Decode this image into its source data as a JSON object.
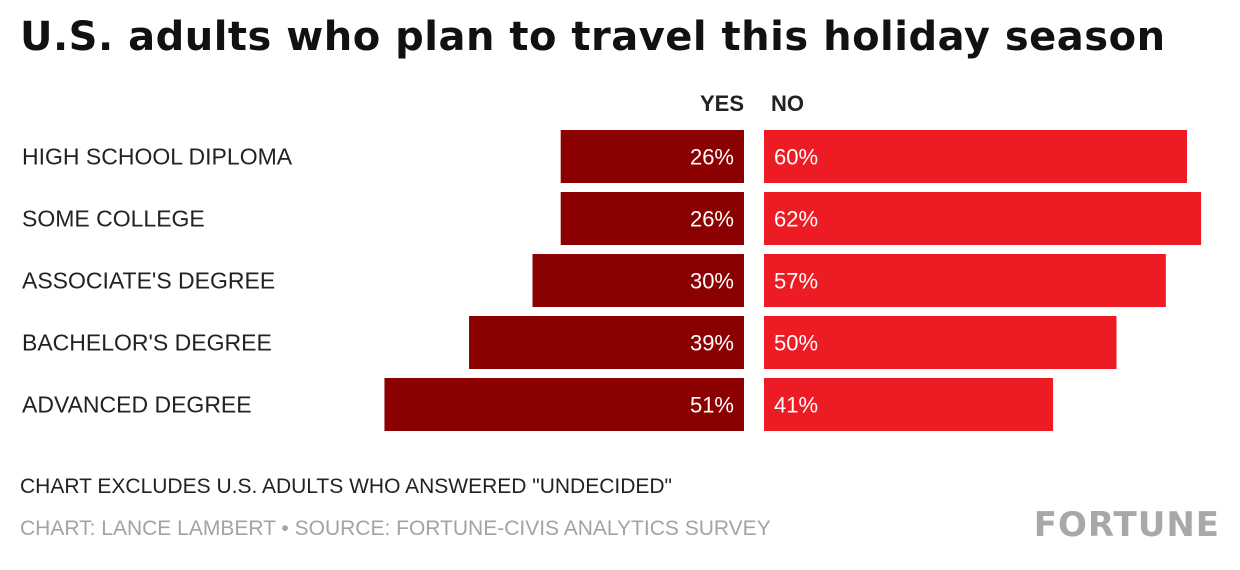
{
  "title": "U.S. adults who plan to travel this holiday season",
  "note": "CHART EXCLUDES U.S. ADULTS WHO ANSWERED \"UNDECIDED\"",
  "credit": "CHART: LANCE LAMBERT • SOURCE: FORTUNE-CIVIS ANALYTICS SURVEY",
  "logo": "FORTUNE",
  "colors": {
    "yes": "#8b0000",
    "no": "#ed1c24"
  },
  "chart_data": {
    "type": "bar",
    "orientation": "horizontal-diverging",
    "categories": [
      "HIGH SCHOOL DIPLOMA",
      "SOME COLLEGE",
      "ASSOCIATE'S DEGREE",
      "BACHELOR'S DEGREE",
      "ADVANCED DEGREE"
    ],
    "series": [
      {
        "name": "YES",
        "values": [
          26,
          26,
          30,
          39,
          51
        ],
        "labels": [
          "26%",
          "26%",
          "30%",
          "39%",
          "51%"
        ]
      },
      {
        "name": "NO",
        "values": [
          60,
          62,
          57,
          50,
          41
        ],
        "labels": [
          "60%",
          "62%",
          "57%",
          "50%",
          "41%"
        ]
      }
    ]
  }
}
